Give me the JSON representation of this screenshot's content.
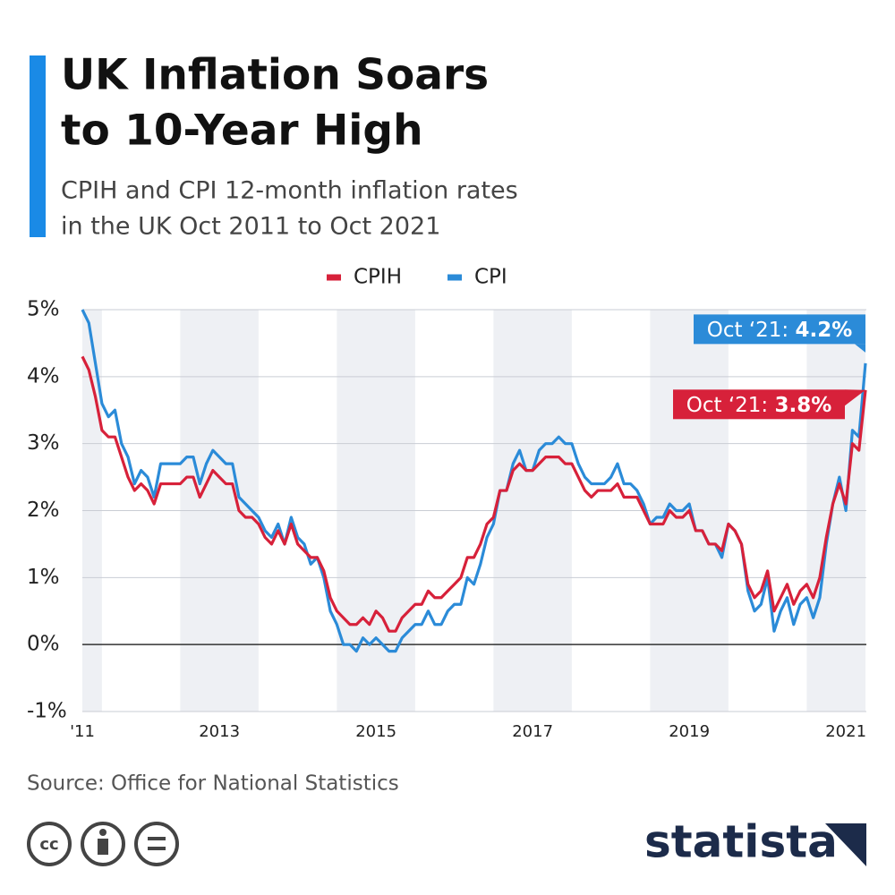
{
  "chart_data": {
    "type": "line",
    "title": [
      "UK Inflation Soars",
      "to 10-Year High"
    ],
    "subtitle": [
      "CPIH and CPI 12-month inflation rates",
      "in the UK Oct 2011 to Oct 2021"
    ],
    "source": "Source: Office for National Statistics",
    "brand": "statista",
    "categories": [
      "'11",
      null,
      null,
      null,
      null,
      null,
      null,
      null,
      null,
      null,
      null,
      null,
      null,
      null,
      null,
      null,
      null,
      null,
      null,
      null,
      null,
      "2013",
      null,
      null,
      null,
      null,
      null,
      null,
      null,
      null,
      null,
      null,
      null,
      null,
      null,
      null,
      null,
      null,
      null,
      null,
      null,
      null,
      null,
      null,
      null,
      "2015",
      null,
      null,
      null,
      null,
      null,
      null,
      null,
      null,
      null,
      null,
      null,
      null,
      null,
      null,
      null,
      null,
      null,
      null,
      null,
      null,
      null,
      null,
      null,
      "2017",
      null,
      null,
      null,
      null,
      null,
      null,
      null,
      null,
      null,
      null,
      null,
      null,
      null,
      null,
      null,
      null,
      null,
      null,
      null,
      null,
      null,
      null,
      null,
      "2019",
      null,
      null,
      null,
      null,
      null,
      null,
      null,
      null,
      null,
      null,
      null,
      null,
      null,
      null,
      null,
      null,
      null,
      null,
      null,
      null,
      null,
      null,
      null,
      "2021",
      null,
      null,
      null
    ],
    "series": [
      {
        "name": "CPIH",
        "color": "#d7213a",
        "values": [
          4.3,
          4.1,
          3.7,
          3.2,
          3.1,
          3.1,
          2.8,
          2.5,
          2.3,
          2.4,
          2.3,
          2.1,
          2.4,
          2.4,
          2.4,
          2.4,
          2.5,
          2.5,
          2.2,
          2.4,
          2.6,
          2.5,
          2.4,
          2.4,
          2.0,
          1.9,
          1.9,
          1.8,
          1.6,
          1.5,
          1.7,
          1.5,
          1.8,
          1.5,
          1.4,
          1.3,
          1.3,
          1.1,
          0.7,
          0.5,
          0.4,
          0.3,
          0.3,
          0.4,
          0.3,
          0.5,
          0.4,
          0.2,
          0.2,
          0.4,
          0.5,
          0.6,
          0.6,
          0.8,
          0.7,
          0.7,
          0.8,
          0.9,
          1.0,
          1.3,
          1.3,
          1.5,
          1.8,
          1.9,
          2.3,
          2.3,
          2.6,
          2.7,
          2.6,
          2.6,
          2.7,
          2.8,
          2.8,
          2.8,
          2.7,
          2.7,
          2.5,
          2.3,
          2.2,
          2.3,
          2.3,
          2.3,
          2.4,
          2.2,
          2.2,
          2.2,
          2.0,
          1.8,
          1.8,
          1.8,
          2.0,
          1.9,
          1.9,
          2.0,
          1.7,
          1.7,
          1.5,
          1.5,
          1.4,
          1.8,
          1.7,
          1.5,
          0.9,
          0.7,
          0.8,
          1.1,
          0.5,
          0.7,
          0.9,
          0.6,
          0.8,
          0.9,
          0.7,
          1.0,
          1.6,
          2.1,
          2.4,
          2.1,
          3.0,
          2.9,
          3.8
        ],
        "value_labels": [
          null,
          null,
          null,
          null,
          null,
          null,
          null,
          null,
          null,
          null,
          null,
          null,
          null,
          null,
          null,
          null,
          null,
          null,
          null,
          null,
          null,
          null,
          null,
          null,
          null,
          null,
          null,
          null,
          null,
          null,
          null,
          null,
          null,
          null,
          null,
          null,
          null,
          null,
          null,
          null,
          null,
          null,
          null,
          null,
          null,
          null,
          null,
          null,
          null,
          null,
          null,
          null,
          null,
          null,
          null,
          null,
          null,
          null,
          null,
          null,
          null,
          null,
          null,
          null,
          null,
          null,
          null,
          null,
          null,
          null,
          null,
          null,
          null,
          null,
          null,
          null,
          null,
          null,
          null,
          null,
          null,
          null,
          null,
          null,
          null,
          null,
          null,
          null,
          null,
          null,
          null,
          null,
          null,
          null,
          null,
          null,
          null,
          null,
          null,
          null,
          null,
          null,
          null,
          null,
          null,
          null,
          null,
          null,
          null,
          null,
          null,
          null,
          null,
          null,
          null,
          null,
          null,
          null,
          null,
          null,
          "3.8%"
        ]
      },
      {
        "name": "CPI",
        "color": "#2b8bd8",
        "values": [
          5.0,
          4.8,
          4.2,
          3.6,
          3.4,
          3.5,
          3.0,
          2.8,
          2.4,
          2.6,
          2.5,
          2.2,
          2.7,
          2.7,
          2.7,
          2.7,
          2.8,
          2.8,
          2.4,
          2.7,
          2.9,
          2.8,
          2.7,
          2.7,
          2.2,
          2.1,
          2.0,
          1.9,
          1.7,
          1.6,
          1.8,
          1.5,
          1.9,
          1.6,
          1.5,
          1.2,
          1.3,
          1.0,
          0.5,
          0.3,
          0.0,
          0.0,
          -0.1,
          0.1,
          0.0,
          0.1,
          0.0,
          -0.1,
          -0.1,
          0.1,
          0.2,
          0.3,
          0.3,
          0.5,
          0.3,
          0.3,
          0.5,
          0.6,
          0.6,
          1.0,
          0.9,
          1.2,
          1.6,
          1.8,
          2.3,
          2.3,
          2.7,
          2.9,
          2.6,
          2.6,
          2.9,
          3.0,
          3.0,
          3.1,
          3.0,
          3.0,
          2.7,
          2.5,
          2.4,
          2.4,
          2.4,
          2.5,
          2.7,
          2.4,
          2.4,
          2.3,
          2.1,
          1.8,
          1.9,
          1.9,
          2.1,
          2.0,
          2.0,
          2.1,
          1.7,
          1.7,
          1.5,
          1.5,
          1.3,
          1.8,
          1.7,
          1.5,
          0.8,
          0.5,
          0.6,
          1.0,
          0.2,
          0.5,
          0.7,
          0.3,
          0.6,
          0.7,
          0.4,
          0.7,
          1.5,
          2.1,
          2.5,
          2.0,
          3.2,
          3.1,
          4.2
        ],
        "value_labels": [
          null,
          null,
          null,
          null,
          null,
          null,
          null,
          null,
          null,
          null,
          null,
          null,
          null,
          null,
          null,
          null,
          null,
          null,
          null,
          null,
          null,
          null,
          null,
          null,
          null,
          null,
          null,
          null,
          null,
          null,
          null,
          null,
          null,
          null,
          null,
          null,
          null,
          null,
          null,
          null,
          null,
          null,
          null,
          null,
          null,
          null,
          null,
          null,
          null,
          null,
          null,
          null,
          null,
          null,
          null,
          null,
          null,
          null,
          null,
          null,
          null,
          null,
          null,
          null,
          null,
          null,
          null,
          null,
          null,
          null,
          null,
          null,
          null,
          null,
          null,
          null,
          null,
          null,
          null,
          null,
          null,
          null,
          null,
          null,
          null,
          null,
          null,
          null,
          null,
          null,
          null,
          null,
          null,
          null,
          null,
          null,
          null,
          null,
          null,
          null,
          null,
          null,
          null,
          null,
          null,
          null,
          null,
          null,
          null,
          null,
          null,
          null,
          null,
          null,
          null,
          null,
          null,
          null,
          null,
          null,
          "4.2%"
        ]
      }
    ],
    "annotations": [
      "Oct ‘21:",
      "Oct ‘21:"
    ],
    "ylim": [
      -1,
      5
    ],
    "yticks": [
      {
        "value": -1,
        "label": "-1%"
      },
      {
        "value": 0,
        "label": "0%"
      },
      {
        "value": 1,
        "label": "1%"
      },
      {
        "value": 2,
        "label": "2%"
      },
      {
        "value": 3,
        "label": "3%"
      },
      {
        "value": 4,
        "label": "4%"
      },
      {
        "value": 5,
        "label": "5%"
      }
    ],
    "grid": true
  }
}
